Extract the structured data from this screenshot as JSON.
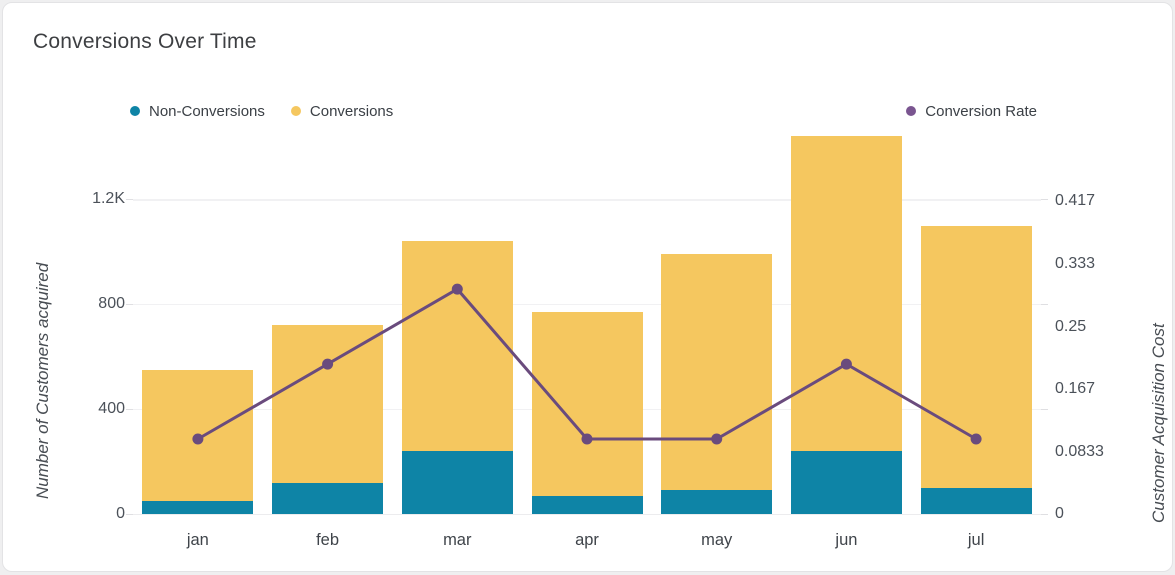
{
  "card": {
    "title": "Conversions Over Time"
  },
  "legend": {
    "left": [
      {
        "label": "Non-Conversions",
        "color": "#0e84a6"
      },
      {
        "label": "Conversions",
        "color": "#f5c75f"
      }
    ],
    "right": [
      {
        "label": "Conversion Rate",
        "color": "#7a5590"
      }
    ]
  },
  "colors": {
    "non_conversions": "#0e84a6",
    "conversions": "#f5c75f",
    "conversion_rate_line": "#6a4b7d",
    "grid": "#f1f1f3",
    "card_background": "#ffffff",
    "page_background": "#efeff0"
  },
  "chart_data": {
    "type": "bar",
    "subtype": "stacked-bars-with-line",
    "title": "Conversions Over Time",
    "categories": [
      "jan",
      "feb",
      "mar",
      "apr",
      "may",
      "jun",
      "jul"
    ],
    "series": [
      {
        "name": "Non-Conversions",
        "kind": "bar",
        "stack_order": "bottom",
        "axis": "left",
        "color": "#0e84a6",
        "values": [
          50,
          120,
          240,
          70,
          90,
          240,
          100
        ]
      },
      {
        "name": "Conversions",
        "kind": "bar",
        "stack_order": "top",
        "axis": "left",
        "color": "#f5c75f",
        "values": [
          500,
          600,
          800,
          700,
          900,
          1200,
          1000
        ]
      },
      {
        "name": "Conversion Rate",
        "kind": "line",
        "axis": "right",
        "color": "#6a4b7d",
        "values": [
          0.1,
          0.2,
          0.3,
          0.1,
          0.1,
          0.2,
          0.1
        ]
      }
    ],
    "stacked_totals": [
      550,
      720,
      1040,
      770,
      990,
      1440,
      1100
    ],
    "left_axis": {
      "label": "Number of Customers acquired",
      "ticks": [
        "0",
        "400",
        "800",
        "1.2K"
      ],
      "tick_values": [
        0,
        400,
        800,
        1200
      ],
      "range": [
        0,
        1472
      ],
      "gridlines": true
    },
    "right_axis": {
      "label": "Customer Acquisition Cost",
      "ticks": [
        "0",
        "0.0833",
        "0.167",
        "0.25",
        "0.333",
        "0.417"
      ],
      "tick_values": [
        0,
        0.0833,
        0.167,
        0.25,
        0.333,
        0.417
      ],
      "range": [
        0,
        0.515
      ],
      "gridlines": false
    },
    "x_axis": {
      "labels": [
        "jan",
        "feb",
        "mar",
        "apr",
        "may",
        "jun",
        "jul"
      ]
    },
    "legend_position": "top"
  }
}
